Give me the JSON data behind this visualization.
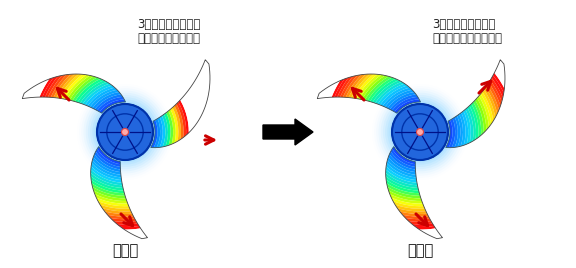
{
  "background_color": "#ffffff",
  "arrow_color": "#cc0000",
  "text_left_line1": "3枚の羽根に対して",
  "text_left_line2": "樹脂が不均一に充填",
  "text_right_line1": "3枚の羽根に対して",
  "text_right_line2": "樹脂がほぼ均一に充填",
  "label_left": "改善前",
  "label_right": "改善後",
  "fig_width": 5.76,
  "fig_height": 2.68,
  "dpi": 100
}
